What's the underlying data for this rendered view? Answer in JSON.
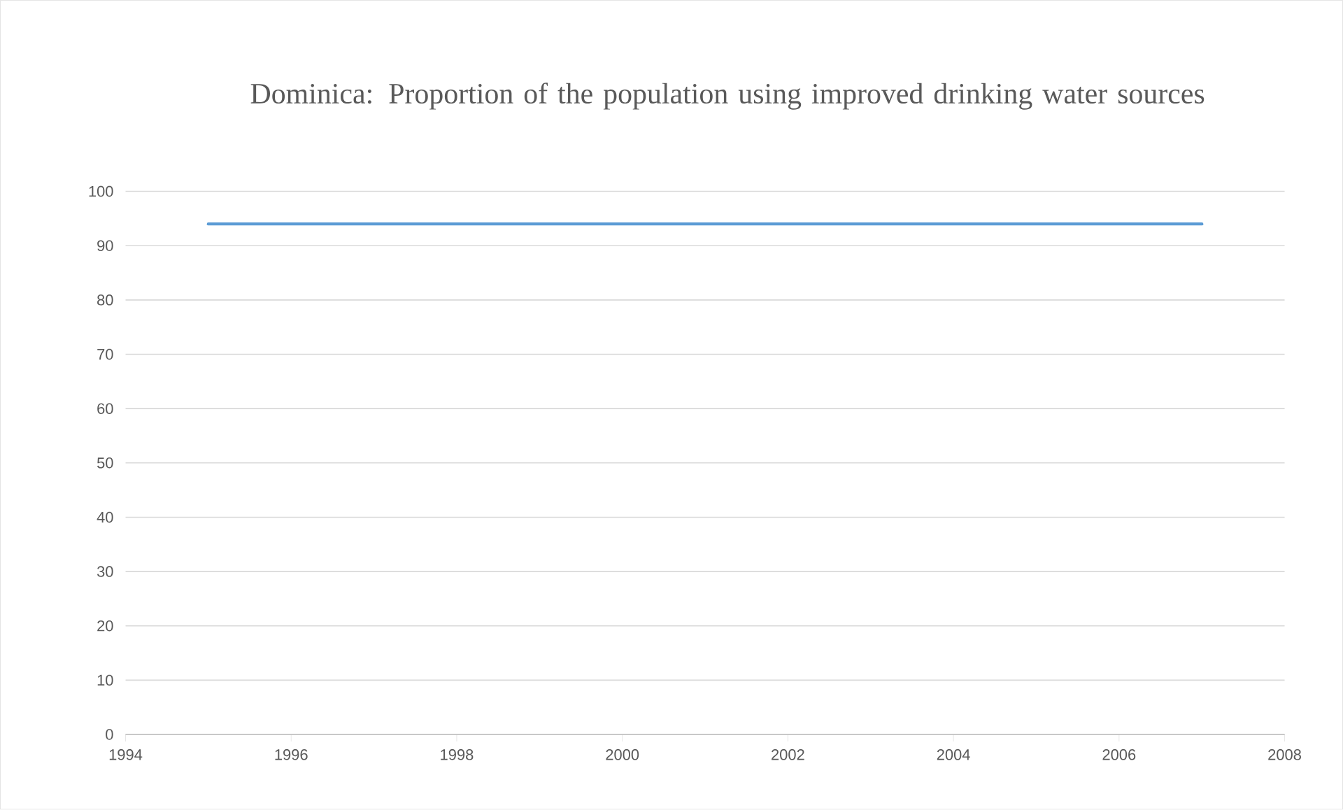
{
  "chart_data": {
    "type": "line",
    "title": "Dominica:  Proportion of the population using improved drinking water sources",
    "x": [
      1995,
      2007
    ],
    "series": [
      {
        "color": "#5b9bd5",
        "values": [
          94,
          94
        ]
      }
    ],
    "xlim": [
      1994,
      2008
    ],
    "xticks": [
      1994,
      1996,
      1998,
      2000,
      2002,
      2004,
      2006,
      2008
    ],
    "ylim": [
      0,
      100
    ],
    "yticks": [
      0,
      10,
      20,
      30,
      40,
      50,
      60,
      70,
      80,
      90,
      100
    ],
    "grid": "y"
  }
}
